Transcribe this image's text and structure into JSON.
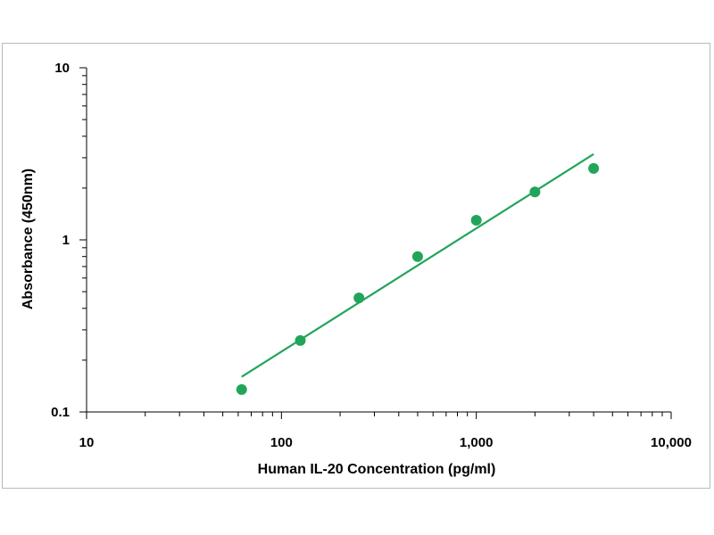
{
  "chart_data": {
    "type": "scatter",
    "xlabel": "Human IL-20 Concentration (pg/ml)",
    "ylabel": "Absorbance (450nm)",
    "x_scale": "log",
    "y_scale": "log",
    "xlim": [
      10,
      10000
    ],
    "ylim": [
      0.1,
      10
    ],
    "x_ticks": [
      10,
      100,
      1000,
      10000
    ],
    "x_tick_labels": [
      "10",
      "100",
      "1,000",
      "10,000"
    ],
    "y_ticks": [
      0.1,
      1,
      10
    ],
    "y_tick_labels": [
      "0.1",
      "1",
      "10"
    ],
    "grid": false,
    "legend": "none",
    "colors": {
      "series": "#22a55a",
      "axis": "#000000",
      "frame": "#b9b9b9"
    },
    "series": [
      {
        "points": [
          {
            "x": 62.5,
            "y": 0.135
          },
          {
            "x": 125,
            "y": 0.26
          },
          {
            "x": 250,
            "y": 0.46
          },
          {
            "x": 500,
            "y": 0.8
          },
          {
            "x": 1000,
            "y": 1.3
          },
          {
            "x": 2000,
            "y": 1.9
          },
          {
            "x": 4000,
            "y": 2.6
          }
        ],
        "fit_line": [
          {
            "x": 62.5,
            "y": 0.16
          },
          {
            "x": 4000,
            "y": 3.15
          }
        ]
      }
    ]
  }
}
